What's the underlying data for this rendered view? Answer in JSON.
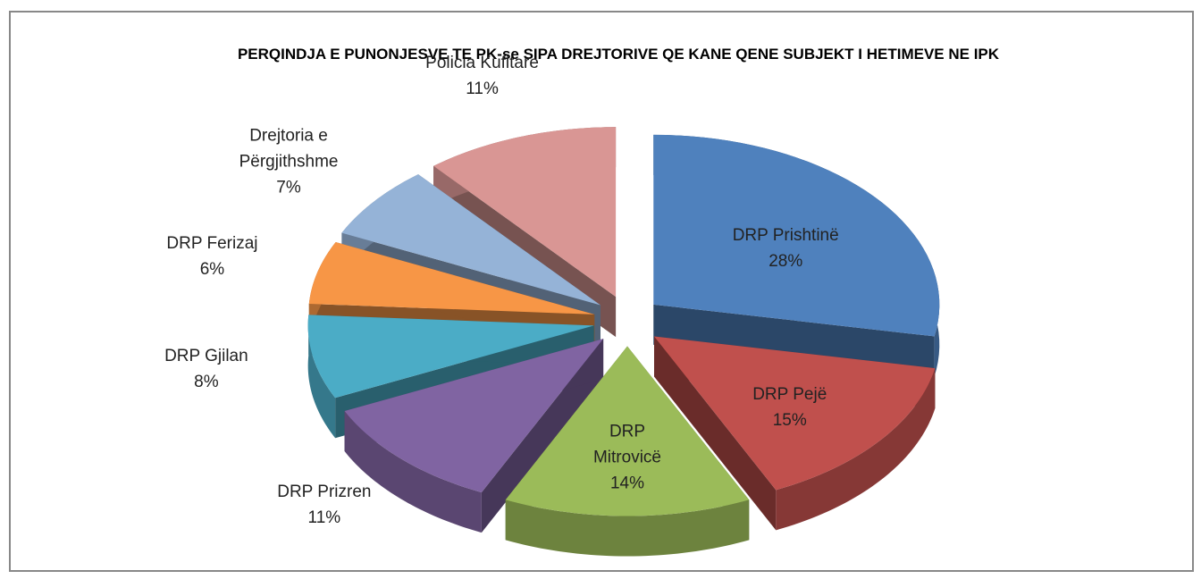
{
  "chart_data": {
    "type": "pie",
    "title": "PERQINDJA E PUNONJESVE TE PK-se SIPA DREJTORIVE QE KANE QENE SUBJEKT I HETIMEVE NE IPK",
    "categories": [
      "DRP Prishtinë",
      "DRP Pejë",
      "DRP Mitrovicë",
      "DRP Prizren",
      "DRP Gjilan",
      "DRP Ferizaj",
      "Drejtoria e Përgjithshme",
      "Policia Kufitare"
    ],
    "values": [
      28,
      15,
      14,
      11,
      8,
      6,
      7,
      11
    ],
    "value_labels": [
      "28%",
      "15%",
      "14%",
      "11%",
      "8%",
      "6%",
      "7%",
      "11%"
    ],
    "colors": [
      "#4f81bd",
      "#c0504d",
      "#9bbb59",
      "#8064a2",
      "#4bacc6",
      "#f79646",
      "#95b3d7",
      "#d99694"
    ]
  }
}
